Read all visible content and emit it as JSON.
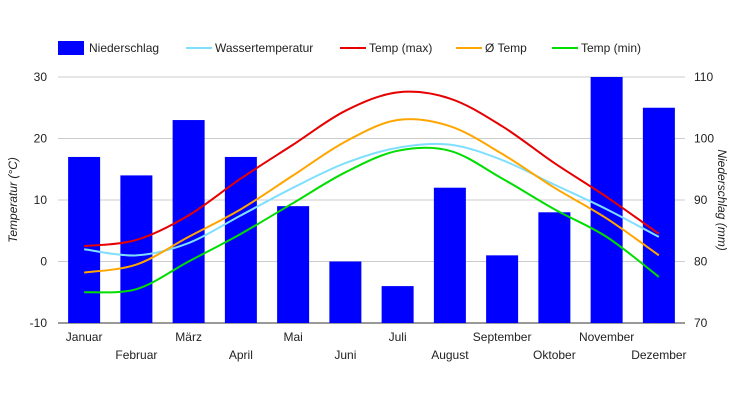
{
  "chart_data": {
    "type": "bar",
    "categories": [
      "Januar",
      "Februar",
      "März",
      "April",
      "Mai",
      "Juni",
      "Juli",
      "August",
      "September",
      "Oktober",
      "November",
      "Dezember"
    ],
    "bar_series": {
      "name": "Niederschlag",
      "axis": "right",
      "color": "#0000ff",
      "values": [
        97,
        94,
        103,
        97,
        89,
        80,
        76,
        92,
        81,
        88,
        110,
        105
      ]
    },
    "line_series": [
      {
        "name": "Wassertemperatur",
        "color": "#80dfff",
        "values": [
          2,
          1,
          3,
          7.5,
          12,
          16,
          18.5,
          19,
          16.5,
          12.5,
          8.5,
          4
        ]
      },
      {
        "name": "Temp (max)",
        "color": "#e60000",
        "values": [
          2.5,
          3.5,
          7.5,
          13.5,
          19,
          24.5,
          27.5,
          26.5,
          22,
          16,
          10.5,
          4.5
        ]
      },
      {
        "name": "Ø Temp",
        "color": "#ffa500",
        "values": [
          -1.8,
          -0.5,
          4,
          8.5,
          14,
          19.5,
          23,
          22,
          17.5,
          12,
          7,
          1
        ]
      },
      {
        "name": "Temp (min)",
        "color": "#00dd00",
        "values": [
          -5,
          -4.5,
          0,
          4.5,
          9.5,
          14.5,
          18,
          18,
          13.5,
          8.5,
          4,
          -2.5
        ]
      }
    ],
    "legend": [
      "Niederschlag",
      "Wassertemperatur",
      "Temp (max)",
      "Ø Temp",
      "Temp (min)"
    ],
    "left_axis": {
      "label": "Temperatur (°C)",
      "min": -10,
      "max": 30,
      "ticks": [
        "-10",
        "0",
        "10",
        "20",
        "30"
      ]
    },
    "right_axis": {
      "label": "Niederschlag (mm)",
      "min": 70,
      "max": 110,
      "ticks": [
        "70",
        "80",
        "90",
        "100",
        "110"
      ]
    },
    "grid": true,
    "legend_position": "top"
  }
}
